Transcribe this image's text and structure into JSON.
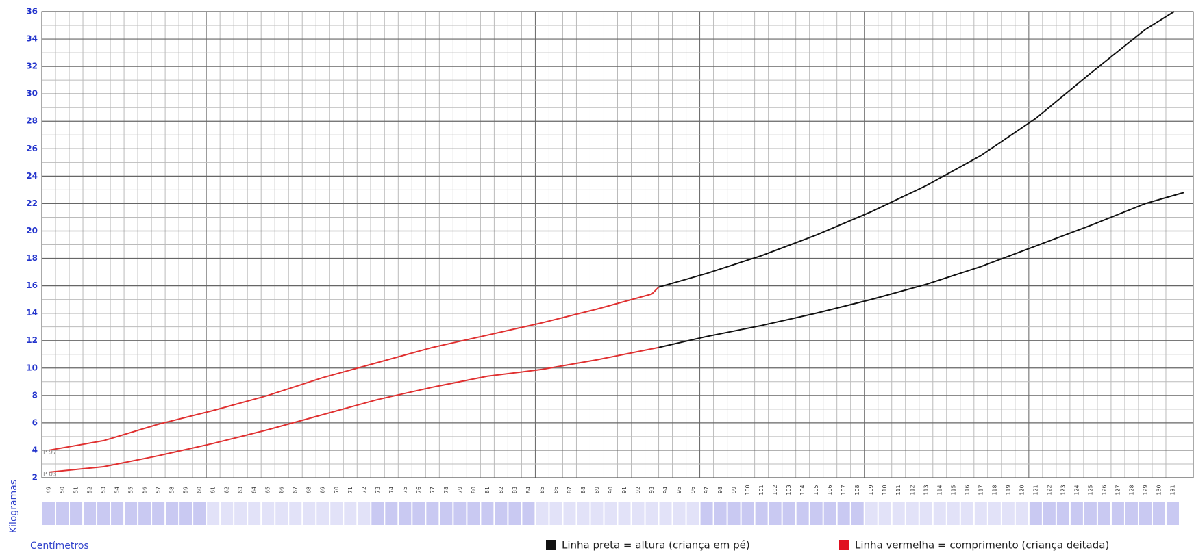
{
  "chart_data": {
    "type": "line",
    "y_label": "Kilogramas",
    "x_label": "Centímetros",
    "xlim": [
      48.5,
      132.5
    ],
    "ylim": [
      2,
      36
    ],
    "yticks": [
      2,
      4,
      6,
      8,
      10,
      12,
      14,
      16,
      18,
      20,
      22,
      24,
      26,
      28,
      30,
      32,
      34,
      36
    ],
    "xticks": [
      49,
      50,
      51,
      52,
      53,
      54,
      55,
      56,
      57,
      58,
      59,
      60,
      61,
      62,
      63,
      64,
      65,
      66,
      67,
      68,
      69,
      70,
      71,
      72,
      73,
      74,
      75,
      76,
      77,
      78,
      79,
      80,
      81,
      82,
      83,
      84,
      85,
      86,
      87,
      88,
      89,
      90,
      91,
      92,
      93,
      94,
      95,
      96,
      97,
      98,
      99,
      100,
      101,
      102,
      103,
      104,
      105,
      106,
      107,
      108,
      109,
      110,
      111,
      112,
      113,
      114,
      115,
      116,
      117,
      118,
      119,
      120,
      121,
      122,
      123,
      124,
      125,
      126,
      127,
      128,
      129,
      130,
      131
    ],
    "grid": true,
    "series": [
      {
        "name": "P 97",
        "color": "#e03030",
        "x": [
          49,
          53,
          57,
          61,
          65,
          69,
          73,
          77,
          81,
          85,
          89,
          93,
          93.5
        ],
        "values": [
          4.0,
          4.7,
          5.9,
          6.9,
          8.0,
          9.3,
          10.4,
          11.5,
          12.4,
          13.3,
          14.3,
          15.4,
          15.9
        ]
      },
      {
        "name": "P 03",
        "color": "#e03030",
        "x": [
          49,
          53,
          57,
          61,
          65,
          69,
          73,
          77,
          81,
          85,
          89,
          93,
          93.5
        ],
        "values": [
          2.4,
          2.8,
          3.6,
          4.5,
          5.5,
          6.6,
          7.7,
          8.6,
          9.4,
          9.9,
          10.6,
          11.4,
          11.5
        ]
      },
      {
        "color": "#111111",
        "x": [
          93.5,
          97,
          101,
          105,
          109,
          113,
          117,
          121,
          125,
          129,
          131.1
        ],
        "values": [
          15.9,
          16.9,
          18.2,
          19.7,
          21.4,
          23.3,
          25.5,
          28.2,
          31.5,
          34.7,
          36
        ]
      },
      {
        "color": "#111111",
        "x": [
          93.5,
          97,
          101,
          105,
          109,
          113,
          117,
          121,
          125,
          129,
          131.8
        ],
        "values": [
          11.5,
          12.3,
          13.1,
          14.0,
          15.0,
          16.1,
          17.4,
          18.9,
          20.4,
          22.0,
          22.8
        ]
      }
    ],
    "legend": [
      {
        "label": "Linha preta = altura (criança em pé)",
        "color": "#111111"
      },
      {
        "label": "Linha vermelha = comprimento (criança deitada)",
        "color": "#e01020"
      }
    ]
  }
}
